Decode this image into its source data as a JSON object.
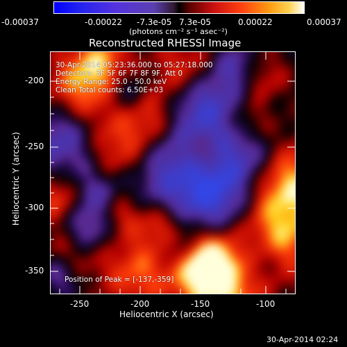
{
  "colorbar": {
    "ticks": [
      "-0.00037",
      "-0.00022",
      "-7.3e-05",
      "7.3e-05",
      "0.00022",
      "0.00037"
    ],
    "units": "(photons cm⁻² s⁻¹ asec⁻²)"
  },
  "title": "Reconstructed RHESSI Image",
  "annotations": {
    "time_range": "30-Apr-2014 05:23:36.000 to 05:27:18.000",
    "detectors": "Detectors: 3F 5F 6F 7F 8F 9F, Att 0",
    "energy_range": "Energy Range: 25.0 - 50.0 keV",
    "clean_counts": "Clean     Total counts: 6.50E+03",
    "peak_label": "Position of Peak = ",
    "peak_value": "[-137,-359]"
  },
  "axes": {
    "xlabel": "Heliocentric X (arcsec)",
    "ylabel": "Heliocentric Y (arcsec)",
    "xticks": [
      "-250",
      "-200",
      "-150",
      "-100"
    ],
    "yticks": [
      "-200",
      "-250",
      "-300",
      "-350"
    ]
  },
  "footer_timestamp": "30-Apr-2014 02:24",
  "colors": {
    "negative": "#3a2bd0",
    "positive": "#ff3a10",
    "peak": "#ffffe0"
  }
}
